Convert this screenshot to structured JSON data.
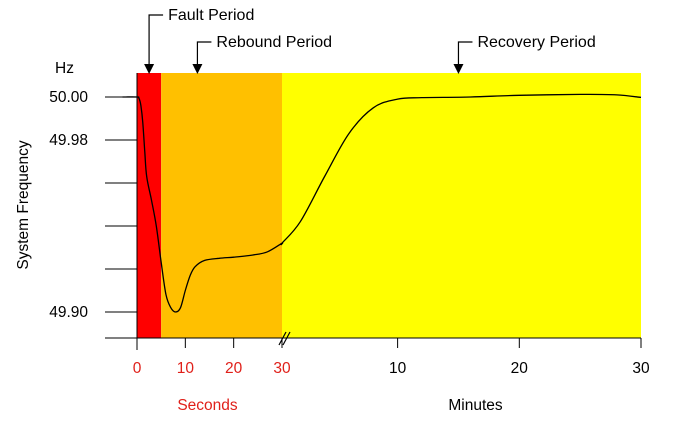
{
  "chart_data": {
    "type": "line",
    "unit_label": "Hz",
    "ylabel": "System Frequency",
    "ylim": [
      49.9,
      50.0
    ],
    "y_tick_labels": [
      {
        "value": 50.0,
        "label": "50.00"
      },
      {
        "value": 49.98,
        "label": "49.98"
      },
      {
        "value": 49.9,
        "label": "49.90"
      }
    ],
    "y_minor_ticks": [
      49.96,
      49.94,
      49.92
    ],
    "x_segments": [
      {
        "name": "seconds",
        "title": "Seconds",
        "range": [
          0,
          30
        ],
        "tick_labels": [
          {
            "value": 0,
            "label": "0"
          },
          {
            "value": 10,
            "label": "10"
          },
          {
            "value": 20,
            "label": "20"
          },
          {
            "value": 30,
            "label": "30"
          }
        ],
        "label_color": "#e0201a"
      },
      {
        "name": "minutes",
        "title": "Minutes",
        "range": [
          0.5,
          30
        ],
        "tick_labels": [
          {
            "value": 10,
            "label": "10"
          },
          {
            "value": 20,
            "label": "20"
          },
          {
            "value": 30,
            "label": "30"
          }
        ],
        "label_color": "#000000"
      }
    ],
    "periods": [
      {
        "label": "Fault Period",
        "segment": "seconds",
        "start": 0,
        "end": 5,
        "arrow_at": 2.5,
        "color": "#ff0000"
      },
      {
        "label": "Rebound Period",
        "segment": "seconds",
        "start": 5,
        "end": 30,
        "arrow_at": 12.5,
        "color": "#ffc000"
      },
      {
        "label": "Recovery Period",
        "segment": "minutes",
        "start": 0.5,
        "end": 30,
        "arrow_at": 15,
        "color": "#ffff00"
      }
    ],
    "series": [
      {
        "color": "#000000",
        "seconds_points": [
          [
            -3,
            50.0
          ],
          [
            0,
            50.0
          ],
          [
            0.4,
            49.9995
          ],
          [
            0.8,
            49.996
          ],
          [
            1.2,
            49.988
          ],
          [
            1.6,
            49.975
          ],
          [
            2,
            49.963
          ],
          [
            3,
            49.952
          ],
          [
            4,
            49.94
          ],
          [
            5,
            49.923
          ],
          [
            6,
            49.908
          ],
          [
            7,
            49.902
          ],
          [
            8,
            49.9
          ],
          [
            9,
            49.902
          ],
          [
            10,
            49.91
          ],
          [
            11,
            49.917
          ],
          [
            12,
            49.921
          ],
          [
            14,
            49.924
          ],
          [
            17,
            49.925
          ],
          [
            20,
            49.9255
          ],
          [
            24,
            49.9265
          ],
          [
            27,
            49.928
          ],
          [
            30,
            49.932
          ]
        ],
        "minutes_points": [
          [
            0.5,
            49.932
          ],
          [
            2,
            49.942
          ],
          [
            4,
            49.963
          ],
          [
            6,
            49.983
          ],
          [
            8,
            49.995
          ],
          [
            10,
            49.999
          ],
          [
            12,
            49.9997
          ],
          [
            16,
            50.0
          ],
          [
            20,
            50.0008
          ],
          [
            25,
            50.0012
          ],
          [
            28,
            50.001
          ],
          [
            30,
            49.9998
          ]
        ]
      }
    ]
  }
}
